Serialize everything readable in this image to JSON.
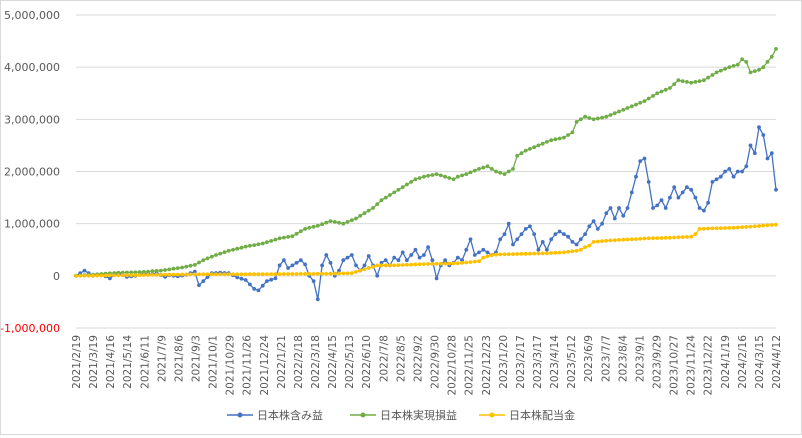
{
  "chart_data": {
    "type": "line",
    "title": "",
    "xlabel": "",
    "ylabel": "",
    "ylim": [
      -1000000,
      5000000
    ],
    "y_ticks": [
      {
        "value": 5000000,
        "label": "5,000,000"
      },
      {
        "value": 4000000,
        "label": "4,000,000"
      },
      {
        "value": 3000000,
        "label": "3,000,000"
      },
      {
        "value": 2000000,
        "label": "2,000,000"
      },
      {
        "value": 1000000,
        "label": "1,000,000"
      },
      {
        "value": 0,
        "label": "0"
      },
      {
        "value": -1000000,
        "label": "-1,000,000"
      }
    ],
    "negative_tick_color": "#ff0000",
    "grid": true,
    "legend_position": "bottom",
    "x_tick_labels": [
      "2021/2/19",
      "2021/3/19",
      "2021/4/16",
      "2021/5/14",
      "2021/6/11",
      "2021/7/9",
      "2021/8/6",
      "2021/9/3",
      "2021/10/1",
      "2021/10/29",
      "2021/11/26",
      "2021/12/24",
      "2022/1/21",
      "2022/2/18",
      "2022/3/18",
      "2022/4/15",
      "2022/5/13",
      "2022/6/10",
      "2022/7/8",
      "2022/8/5",
      "2022/9/2",
      "2022/9/30",
      "2022/10/28",
      "2022/11/25",
      "2022/12/23",
      "2023/1/20",
      "2023/2/17",
      "2023/3/17",
      "2023/4/14",
      "2023/5/12",
      "2023/6/9",
      "2023/7/7",
      "2023/8/4",
      "2023/9/1",
      "2023/9/29",
      "2023/10/27",
      "2023/11/24",
      "2023/12/22",
      "2024/1/19",
      "2024/2/16",
      "2024/3/15",
      "2024/4/12"
    ],
    "series": [
      {
        "name": "日本株含み益",
        "color": "#4472c4",
        "points": [
          [
            0,
            0
          ],
          [
            2,
            100000
          ],
          [
            4,
            0
          ],
          [
            6,
            30000
          ],
          [
            8,
            -50000
          ],
          [
            9,
            20000
          ],
          [
            10,
            50000
          ],
          [
            12,
            -20000
          ],
          [
            14,
            0
          ],
          [
            16,
            40000
          ],
          [
            18,
            30000
          ],
          [
            19,
            50000
          ],
          [
            21,
            -20000
          ],
          [
            22,
            10000
          ],
          [
            24,
            -10000
          ],
          [
            26,
            20000
          ],
          [
            28,
            80000
          ],
          [
            29,
            -180000
          ],
          [
            30,
            -100000
          ],
          [
            32,
            50000
          ],
          [
            34,
            60000
          ],
          [
            36,
            50000
          ],
          [
            38,
            -30000
          ],
          [
            40,
            -80000
          ],
          [
            42,
            -250000
          ],
          [
            43,
            -280000
          ],
          [
            45,
            -100000
          ],
          [
            47,
            -50000
          ],
          [
            48,
            200000
          ],
          [
            49,
            300000
          ],
          [
            50,
            150000
          ],
          [
            52,
            250000
          ],
          [
            53,
            300000
          ],
          [
            54,
            220000
          ],
          [
            55,
            0
          ],
          [
            56,
            -100000
          ],
          [
            57,
            -450000
          ],
          [
            58,
            200000
          ],
          [
            59,
            400000
          ],
          [
            60,
            250000
          ],
          [
            61,
            0
          ],
          [
            62,
            100000
          ],
          [
            63,
            300000
          ],
          [
            64,
            350000
          ],
          [
            65,
            400000
          ],
          [
            66,
            200000
          ],
          [
            67,
            100000
          ],
          [
            68,
            200000
          ],
          [
            69,
            380000
          ],
          [
            70,
            200000
          ],
          [
            71,
            0
          ],
          [
            72,
            250000
          ],
          [
            73,
            300000
          ],
          [
            74,
            200000
          ],
          [
            75,
            350000
          ],
          [
            76,
            300000
          ],
          [
            77,
            450000
          ],
          [
            78,
            300000
          ],
          [
            79,
            400000
          ],
          [
            80,
            500000
          ],
          [
            81,
            350000
          ],
          [
            82,
            400000
          ],
          [
            83,
            550000
          ],
          [
            84,
            300000
          ],
          [
            85,
            -50000
          ],
          [
            86,
            200000
          ],
          [
            87,
            300000
          ],
          [
            88,
            200000
          ],
          [
            89,
            250000
          ],
          [
            90,
            350000
          ],
          [
            91,
            300000
          ],
          [
            92,
            500000
          ],
          [
            93,
            700000
          ],
          [
            94,
            400000
          ],
          [
            95,
            450000
          ],
          [
            96,
            500000
          ],
          [
            97,
            450000
          ],
          [
            98,
            400000
          ],
          [
            99,
            450000
          ],
          [
            100,
            700000
          ],
          [
            101,
            800000
          ],
          [
            102,
            1000000
          ],
          [
            103,
            600000
          ],
          [
            104,
            700000
          ],
          [
            105,
            800000
          ],
          [
            106,
            900000
          ],
          [
            107,
            950000
          ],
          [
            108,
            800000
          ],
          [
            109,
            500000
          ],
          [
            110,
            650000
          ],
          [
            111,
            500000
          ],
          [
            112,
            700000
          ],
          [
            113,
            800000
          ],
          [
            114,
            850000
          ],
          [
            115,
            800000
          ],
          [
            116,
            750000
          ],
          [
            117,
            650000
          ],
          [
            118,
            600000
          ],
          [
            119,
            700000
          ],
          [
            120,
            800000
          ],
          [
            121,
            950000
          ],
          [
            122,
            1050000
          ],
          [
            123,
            900000
          ],
          [
            124,
            1000000
          ],
          [
            125,
            1200000
          ],
          [
            126,
            1300000
          ],
          [
            127,
            1100000
          ],
          [
            128,
            1300000
          ],
          [
            129,
            1150000
          ],
          [
            130,
            1300000
          ],
          [
            131,
            1600000
          ],
          [
            132,
            1900000
          ],
          [
            133,
            2200000
          ],
          [
            134,
            2250000
          ],
          [
            135,
            1800000
          ],
          [
            136,
            1300000
          ],
          [
            137,
            1350000
          ],
          [
            138,
            1450000
          ],
          [
            139,
            1300000
          ],
          [
            140,
            1500000
          ],
          [
            141,
            1700000
          ],
          [
            142,
            1500000
          ],
          [
            143,
            1600000
          ],
          [
            144,
            1700000
          ],
          [
            145,
            1650000
          ],
          [
            146,
            1500000
          ],
          [
            147,
            1300000
          ],
          [
            148,
            1250000
          ],
          [
            149,
            1400000
          ],
          [
            150,
            1800000
          ],
          [
            151,
            1850000
          ],
          [
            152,
            1900000
          ],
          [
            153,
            2000000
          ],
          [
            154,
            2050000
          ],
          [
            155,
            1900000
          ],
          [
            156,
            2000000
          ],
          [
            157,
            2000000
          ],
          [
            158,
            2100000
          ],
          [
            159,
            2500000
          ],
          [
            160,
            2350000
          ],
          [
            161,
            2850000
          ],
          [
            162,
            2700000
          ],
          [
            163,
            2250000
          ],
          [
            164,
            2350000
          ],
          [
            165,
            1650000
          ]
        ]
      },
      {
        "name": "日本株実現損益",
        "color": "#70ad47",
        "points": [
          [
            0,
            0
          ],
          [
            5,
            30000
          ],
          [
            10,
            60000
          ],
          [
            15,
            70000
          ],
          [
            20,
            100000
          ],
          [
            25,
            160000
          ],
          [
            28,
            210000
          ],
          [
            30,
            300000
          ],
          [
            33,
            400000
          ],
          [
            36,
            480000
          ],
          [
            40,
            560000
          ],
          [
            44,
            620000
          ],
          [
            48,
            720000
          ],
          [
            51,
            760000
          ],
          [
            54,
            900000
          ],
          [
            57,
            960000
          ],
          [
            60,
            1050000
          ],
          [
            63,
            1000000
          ],
          [
            66,
            1100000
          ],
          [
            68,
            1200000
          ],
          [
            70,
            1300000
          ],
          [
            72,
            1450000
          ],
          [
            75,
            1600000
          ],
          [
            78,
            1750000
          ],
          [
            80,
            1850000
          ],
          [
            82,
            1900000
          ],
          [
            85,
            1950000
          ],
          [
            87,
            1900000
          ],
          [
            89,
            1850000
          ],
          [
            90,
            1900000
          ],
          [
            92,
            1950000
          ],
          [
            95,
            2050000
          ],
          [
            97,
            2100000
          ],
          [
            99,
            2000000
          ],
          [
            101,
            1950000
          ],
          [
            103,
            2050000
          ],
          [
            104,
            2300000
          ],
          [
            106,
            2400000
          ],
          [
            109,
            2500000
          ],
          [
            112,
            2600000
          ],
          [
            115,
            2650000
          ],
          [
            117,
            2750000
          ],
          [
            118,
            2950000
          ],
          [
            120,
            3050000
          ],
          [
            122,
            3000000
          ],
          [
            125,
            3050000
          ],
          [
            128,
            3150000
          ],
          [
            131,
            3250000
          ],
          [
            134,
            3350000
          ],
          [
            137,
            3500000
          ],
          [
            140,
            3600000
          ],
          [
            142,
            3750000
          ],
          [
            145,
            3700000
          ],
          [
            148,
            3750000
          ],
          [
            151,
            3900000
          ],
          [
            154,
            4000000
          ],
          [
            156,
            4050000
          ],
          [
            157,
            4150000
          ],
          [
            158,
            4100000
          ],
          [
            159,
            3900000
          ],
          [
            161,
            3950000
          ],
          [
            162,
            4000000
          ],
          [
            163,
            4100000
          ],
          [
            164,
            4200000
          ],
          [
            165,
            4350000
          ]
        ]
      },
      {
        "name": "日本株配当金",
        "color": "#ffc000",
        "points": [
          [
            0,
            0
          ],
          [
            10,
            10000
          ],
          [
            20,
            20000
          ],
          [
            30,
            30000
          ],
          [
            40,
            30000
          ],
          [
            50,
            35000
          ],
          [
            60,
            40000
          ],
          [
            65,
            50000
          ],
          [
            67,
            100000
          ],
          [
            69,
            150000
          ],
          [
            71,
            200000
          ],
          [
            75,
            200000
          ],
          [
            80,
            220000
          ],
          [
            85,
            230000
          ],
          [
            90,
            240000
          ],
          [
            95,
            280000
          ],
          [
            96,
            350000
          ],
          [
            98,
            400000
          ],
          [
            100,
            410000
          ],
          [
            105,
            420000
          ],
          [
            110,
            430000
          ],
          [
            115,
            450000
          ],
          [
            118,
            480000
          ],
          [
            119,
            500000
          ],
          [
            120,
            550000
          ],
          [
            121,
            580000
          ],
          [
            122,
            650000
          ],
          [
            126,
            680000
          ],
          [
            131,
            700000
          ],
          [
            135,
            720000
          ],
          [
            140,
            730000
          ],
          [
            145,
            750000
          ],
          [
            146,
            800000
          ],
          [
            147,
            900000
          ],
          [
            150,
            910000
          ],
          [
            155,
            920000
          ],
          [
            160,
            950000
          ],
          [
            165,
            980000
          ]
        ]
      }
    ]
  }
}
